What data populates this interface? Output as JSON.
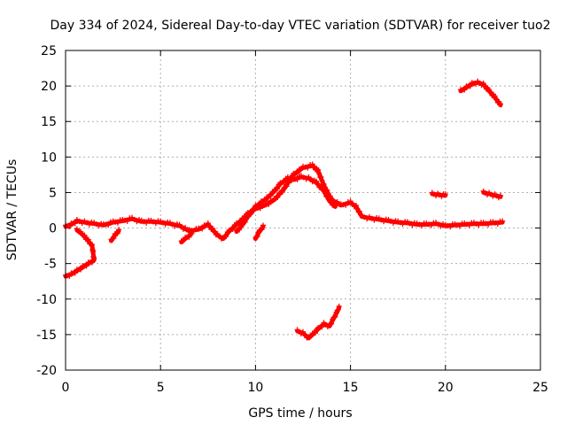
{
  "chart_data": {
    "type": "scatter",
    "title": "Day 334 of 2024, Sidereal Day-to-day VTEC variation (SDTVAR) for receiver tuo2",
    "xlabel": "GPS time / hours",
    "ylabel": "SDTVAR / TECUs",
    "xlim": [
      0,
      25
    ],
    "ylim": [
      -20,
      25
    ],
    "xticks": [
      0,
      5,
      10,
      15,
      20,
      25
    ],
    "yticks": [
      -20,
      -15,
      -10,
      -5,
      0,
      5,
      10,
      15,
      20,
      25
    ],
    "grid": true,
    "marker": "+",
    "series_color": "#ff0000",
    "series": [
      {
        "name": "main-trace",
        "points": [
          [
            0.0,
            0.2
          ],
          [
            0.3,
            0.5
          ],
          [
            0.6,
            1.0
          ],
          [
            1.0,
            0.8
          ],
          [
            1.5,
            0.6
          ],
          [
            2.0,
            0.4
          ],
          [
            2.5,
            0.8
          ],
          [
            3.0,
            1.0
          ],
          [
            3.5,
            1.3
          ],
          [
            4.0,
            0.9
          ],
          [
            4.5,
            0.9
          ],
          [
            5.0,
            0.8
          ],
          [
            5.5,
            0.6
          ],
          [
            6.0,
            0.3
          ],
          [
            6.5,
            -0.4
          ],
          [
            7.0,
            -0.2
          ],
          [
            7.5,
            0.5
          ],
          [
            8.0,
            -1.0
          ],
          [
            8.3,
            -1.5
          ],
          [
            8.6,
            -0.5
          ],
          [
            9.0,
            0.5
          ],
          [
            9.3,
            1.2
          ],
          [
            9.6,
            2.0
          ],
          [
            10.0,
            2.7
          ],
          [
            10.5,
            3.2
          ],
          [
            11.0,
            4.0
          ],
          [
            11.5,
            5.5
          ],
          [
            12.0,
            7.5
          ],
          [
            12.5,
            8.5
          ],
          [
            13.0,
            8.8
          ],
          [
            13.3,
            8.0
          ],
          [
            13.6,
            6.0
          ],
          [
            14.0,
            4.0
          ],
          [
            14.5,
            3.2
          ],
          [
            15.0,
            3.6
          ],
          [
            15.3,
            3.0
          ],
          [
            15.6,
            1.6
          ],
          [
            16.0,
            1.4
          ],
          [
            16.5,
            1.2
          ],
          [
            17.0,
            1.0
          ],
          [
            17.5,
            0.8
          ],
          [
            18.0,
            0.7
          ],
          [
            18.5,
            0.5
          ],
          [
            19.0,
            0.5
          ],
          [
            19.5,
            0.6
          ],
          [
            20.0,
            0.3
          ],
          [
            20.5,
            0.4
          ],
          [
            21.0,
            0.5
          ],
          [
            21.5,
            0.6
          ],
          [
            22.0,
            0.6
          ],
          [
            22.5,
            0.7
          ],
          [
            23.0,
            0.8
          ]
        ]
      },
      {
        "name": "morning-tail",
        "points": [
          [
            0.0,
            -6.8
          ],
          [
            0.3,
            -6.5
          ],
          [
            0.6,
            -6.0
          ],
          [
            0.9,
            -5.5
          ],
          [
            1.2,
            -5.0
          ],
          [
            1.5,
            -4.5
          ],
          [
            1.4,
            -2.5
          ],
          [
            1.2,
            -1.8
          ],
          [
            1.0,
            -1.2
          ],
          [
            0.8,
            -0.7
          ],
          [
            0.6,
            -0.3
          ]
        ]
      },
      {
        "name": "dip-tail-1",
        "points": [
          [
            2.4,
            -1.8
          ],
          [
            2.6,
            -1.0
          ],
          [
            2.8,
            -0.4
          ]
        ]
      },
      {
        "name": "dip-tail-2",
        "points": [
          [
            6.1,
            -2.0
          ],
          [
            6.3,
            -1.5
          ],
          [
            6.6,
            -0.9
          ]
        ]
      },
      {
        "name": "dip-tail-3",
        "points": [
          [
            10.0,
            -1.5
          ],
          [
            10.2,
            -0.5
          ],
          [
            10.4,
            0.2
          ]
        ]
      },
      {
        "name": "upper-branch",
        "points": [
          [
            9.0,
            -0.5
          ],
          [
            9.3,
            0.4
          ],
          [
            9.6,
            1.6
          ],
          [
            10.0,
            3.0
          ],
          [
            10.3,
            3.6
          ],
          [
            10.6,
            4.2
          ],
          [
            11.0,
            5.2
          ],
          [
            11.3,
            6.2
          ],
          [
            11.7,
            7.0
          ],
          [
            12.0,
            6.8
          ],
          [
            12.4,
            7.2
          ],
          [
            12.8,
            7.0
          ],
          [
            13.2,
            6.4
          ],
          [
            13.6,
            5.2
          ],
          [
            13.9,
            3.8
          ],
          [
            14.2,
            3.0
          ]
        ]
      },
      {
        "name": "lower-arc",
        "points": [
          [
            12.2,
            -14.5
          ],
          [
            12.5,
            -14.8
          ],
          [
            12.8,
            -15.5
          ],
          [
            13.0,
            -15.0
          ],
          [
            13.3,
            -14.2
          ],
          [
            13.6,
            -13.5
          ],
          [
            13.9,
            -13.8
          ],
          [
            14.1,
            -12.8
          ],
          [
            14.3,
            -11.8
          ],
          [
            14.4,
            -11.2
          ]
        ]
      },
      {
        "name": "upper-arc",
        "points": [
          [
            20.8,
            19.3
          ],
          [
            21.1,
            19.8
          ],
          [
            21.4,
            20.3
          ],
          [
            21.7,
            20.5
          ],
          [
            22.0,
            20.2
          ],
          [
            22.3,
            19.3
          ],
          [
            22.6,
            18.4
          ],
          [
            22.9,
            17.3
          ]
        ]
      },
      {
        "name": "segment-19h",
        "points": [
          [
            19.3,
            4.8
          ],
          [
            19.6,
            4.7
          ],
          [
            19.9,
            4.6
          ],
          [
            20.0,
            4.6
          ]
        ]
      },
      {
        "name": "segment-22h",
        "points": [
          [
            22.0,
            5.0
          ],
          [
            22.3,
            4.8
          ],
          [
            22.6,
            4.6
          ],
          [
            22.9,
            4.4
          ]
        ]
      }
    ]
  }
}
